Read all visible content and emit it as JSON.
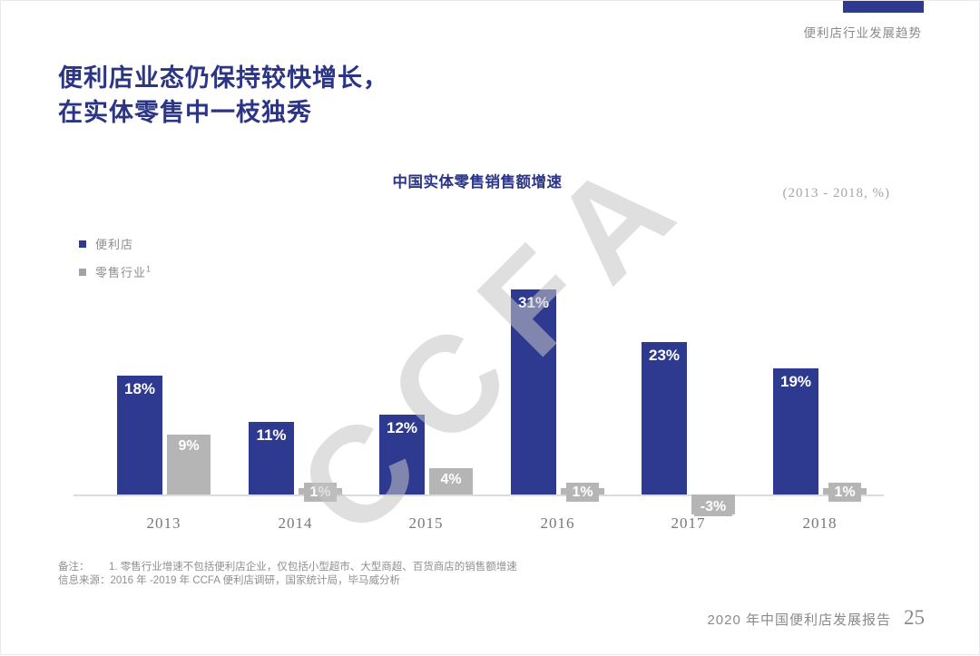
{
  "page": {
    "header_label": "便利店行业发展趋势",
    "title_line1": "便利店业态仍保持较快增长，",
    "title_line2": "在实体零售中一枝独秀",
    "accent_color": "#2e3a8f"
  },
  "chart": {
    "title": "中国实体零售销售额增速",
    "period_label": "(2013 - 2018, %)",
    "watermark": "CCFA",
    "legend": [
      {
        "label": "便利店",
        "superscript": "",
        "color": "#2e3a8f"
      },
      {
        "label": "零售行业",
        "superscript": "1",
        "color": "#a3a3a3"
      }
    ]
  },
  "chart_data": {
    "type": "bar",
    "title": "中国实体零售销售额增速",
    "subtitle": "(2013 - 2018, %)",
    "categories": [
      "2013",
      "2014",
      "2015",
      "2016",
      "2017",
      "2018"
    ],
    "series": [
      {
        "name": "便利店",
        "color": "#2e3a8f",
        "values": [
          18,
          11,
          12,
          31,
          23,
          19
        ]
      },
      {
        "name": "零售行业",
        "color": "#b5b5b5",
        "values": [
          9,
          1,
          4,
          1,
          -3,
          1
        ]
      }
    ],
    "value_suffix": "%",
    "xlabel": "",
    "ylabel": "",
    "ylim": [
      -5,
      35
    ],
    "grid": false,
    "axis_ticks": false,
    "legend_position": "top-left",
    "data_labels": true
  },
  "footnotes": {
    "note_label": "备注：",
    "note_text": "1. 零售行业增速不包括便利店企业，仅包括小型超市、大型商超、百货商店的销售额增速",
    "source_label": "信息来源：",
    "source_text": "2016 年 -2019 年 CCFA 便利店调研，国家统计局，毕马威分析"
  },
  "footer": {
    "report_title": "2020 年中国便利店发展报告",
    "page_number": "25"
  }
}
